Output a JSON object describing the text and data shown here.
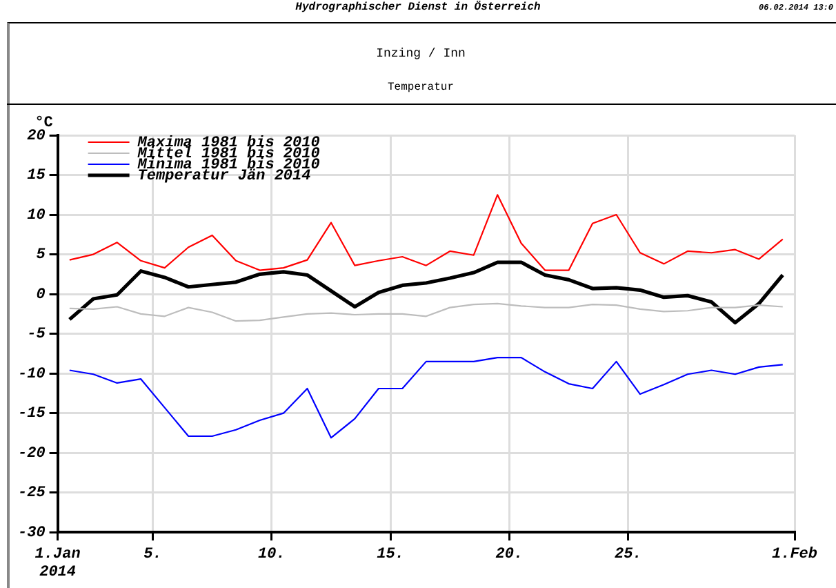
{
  "chart_data": {
    "type": "line",
    "title": "Inzing / Inn",
    "subtitle": "Temperatur",
    "ylabel": "°C",
    "annotations": [
      "Hydrographischer Dienst in Österreich",
      "06.02.2014 13:0"
    ],
    "x": [
      1.5,
      2.5,
      3.5,
      4.5,
      5.5,
      6.5,
      7.5,
      8.5,
      9.5,
      10.5,
      11.5,
      12.5,
      13.5,
      14.5,
      15.5,
      16.5,
      17.5,
      18.5,
      19.5,
      20.5,
      21.5,
      22.5,
      23.5,
      24.5,
      25.5,
      26.5,
      27.5,
      28.5,
      29.5,
      30.5,
      31.5
    ],
    "series": [
      {
        "name": "Maxima 1981 bis 2010",
        "color": "#ff0000",
        "values": [
          4.3,
          5.0,
          6.5,
          4.2,
          3.3,
          5.9,
          7.4,
          4.2,
          3.0,
          3.3,
          4.3,
          9.0,
          3.6,
          4.2,
          4.7,
          3.6,
          5.4,
          4.9,
          12.5,
          6.4,
          3.0,
          3.0,
          8.9,
          10.0,
          5.2,
          3.8,
          5.4,
          5.2,
          5.6,
          4.4,
          6.9
        ]
      },
      {
        "name": "Mittel 1981 bis 2010",
        "color": "#bdbdbd",
        "values": [
          -1.8,
          -1.9,
          -1.6,
          -2.5,
          -2.8,
          -1.7,
          -2.3,
          -3.4,
          -3.3,
          -2.9,
          -2.5,
          -2.4,
          -2.6,
          -2.5,
          -2.5,
          -2.8,
          -1.7,
          -1.3,
          -1.2,
          -1.5,
          -1.7,
          -1.7,
          -1.3,
          -1.4,
          -1.9,
          -2.2,
          -2.1,
          -1.7,
          -1.7,
          -1.4,
          -1.6
        ]
      },
      {
        "name": "Minima 1981 bis 2010",
        "color": "#0000ff",
        "values": [
          -9.6,
          -10.1,
          -11.2,
          -10.7,
          -14.3,
          -17.9,
          -17.9,
          -17.1,
          -15.9,
          -15.0,
          -11.9,
          -18.1,
          -15.7,
          -11.9,
          -11.9,
          -8.5,
          -8.5,
          -8.5,
          -8.0,
          -8.0,
          -9.8,
          -11.3,
          -11.9,
          -8.5,
          -12.6,
          -11.4,
          -10.1,
          -9.6,
          -10.1,
          -9.2,
          -8.9
        ]
      },
      {
        "name": "Temperatur Jän 2014",
        "color": "#000000",
        "values": [
          -3.2,
          -0.6,
          -0.1,
          2.9,
          2.1,
          0.9,
          1.2,
          1.5,
          2.5,
          2.8,
          2.4,
          0.4,
          -1.6,
          0.2,
          1.1,
          1.4,
          2.0,
          2.7,
          4.0,
          4.0,
          2.4,
          1.8,
          0.7,
          0.8,
          0.5,
          -0.4,
          -0.2,
          -1.0,
          -3.6,
          -1.2,
          2.4
        ]
      }
    ],
    "xlim": [
      1,
      32
    ],
    "xticks": [
      {
        "value": 1,
        "label": "1.Jan 2014"
      },
      {
        "value": 5,
        "label": "5."
      },
      {
        "value": 10,
        "label": "10."
      },
      {
        "value": 15,
        "label": "15."
      },
      {
        "value": 20,
        "label": "20."
      },
      {
        "value": 25,
        "label": "25."
      },
      {
        "value": 32,
        "label": "1.Feb"
      }
    ],
    "ylim": [
      -30,
      20
    ],
    "yticks": [
      -30,
      -25,
      -20,
      -15,
      -10,
      -5,
      0,
      5,
      10,
      15,
      20
    ],
    "grid": true,
    "legend": "top left",
    "marker": "none",
    "line_style": "solid"
  }
}
